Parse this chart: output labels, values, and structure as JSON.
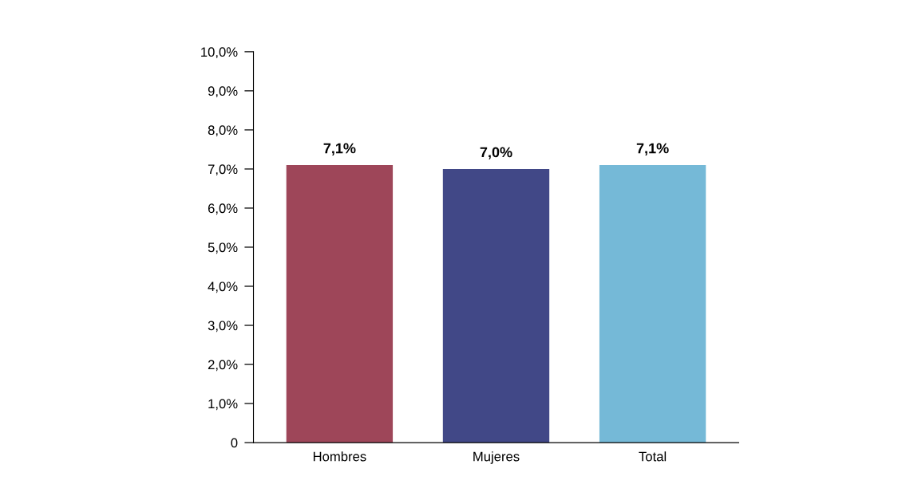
{
  "chart_data": {
    "type": "bar",
    "categories": [
      "Hombres",
      "Mujeres",
      "Total"
    ],
    "values": [
      7.1,
      7.0,
      7.1
    ],
    "colors": [
      "#9e4659",
      "#414887",
      "#75b9d7"
    ],
    "value_labels": [
      "7,1%",
      "7,0%",
      "7,1%"
    ],
    "ylim": [
      0,
      10
    ],
    "yticks": [
      {
        "value": 0,
        "label": "0"
      },
      {
        "value": 1,
        "label": "1,0%"
      },
      {
        "value": 2,
        "label": "2,0%"
      },
      {
        "value": 3,
        "label": "3,0%"
      },
      {
        "value": 4,
        "label": "4,0%"
      },
      {
        "value": 5,
        "label": "5,0%"
      },
      {
        "value": 6,
        "label": "6,0%"
      },
      {
        "value": 7,
        "label": "7,0%"
      },
      {
        "value": 8,
        "label": "8,0%"
      },
      {
        "value": 9,
        "label": "9,0%"
      },
      {
        "value": 10,
        "label": "10,0%"
      }
    ],
    "grid": false,
    "legend": false
  }
}
